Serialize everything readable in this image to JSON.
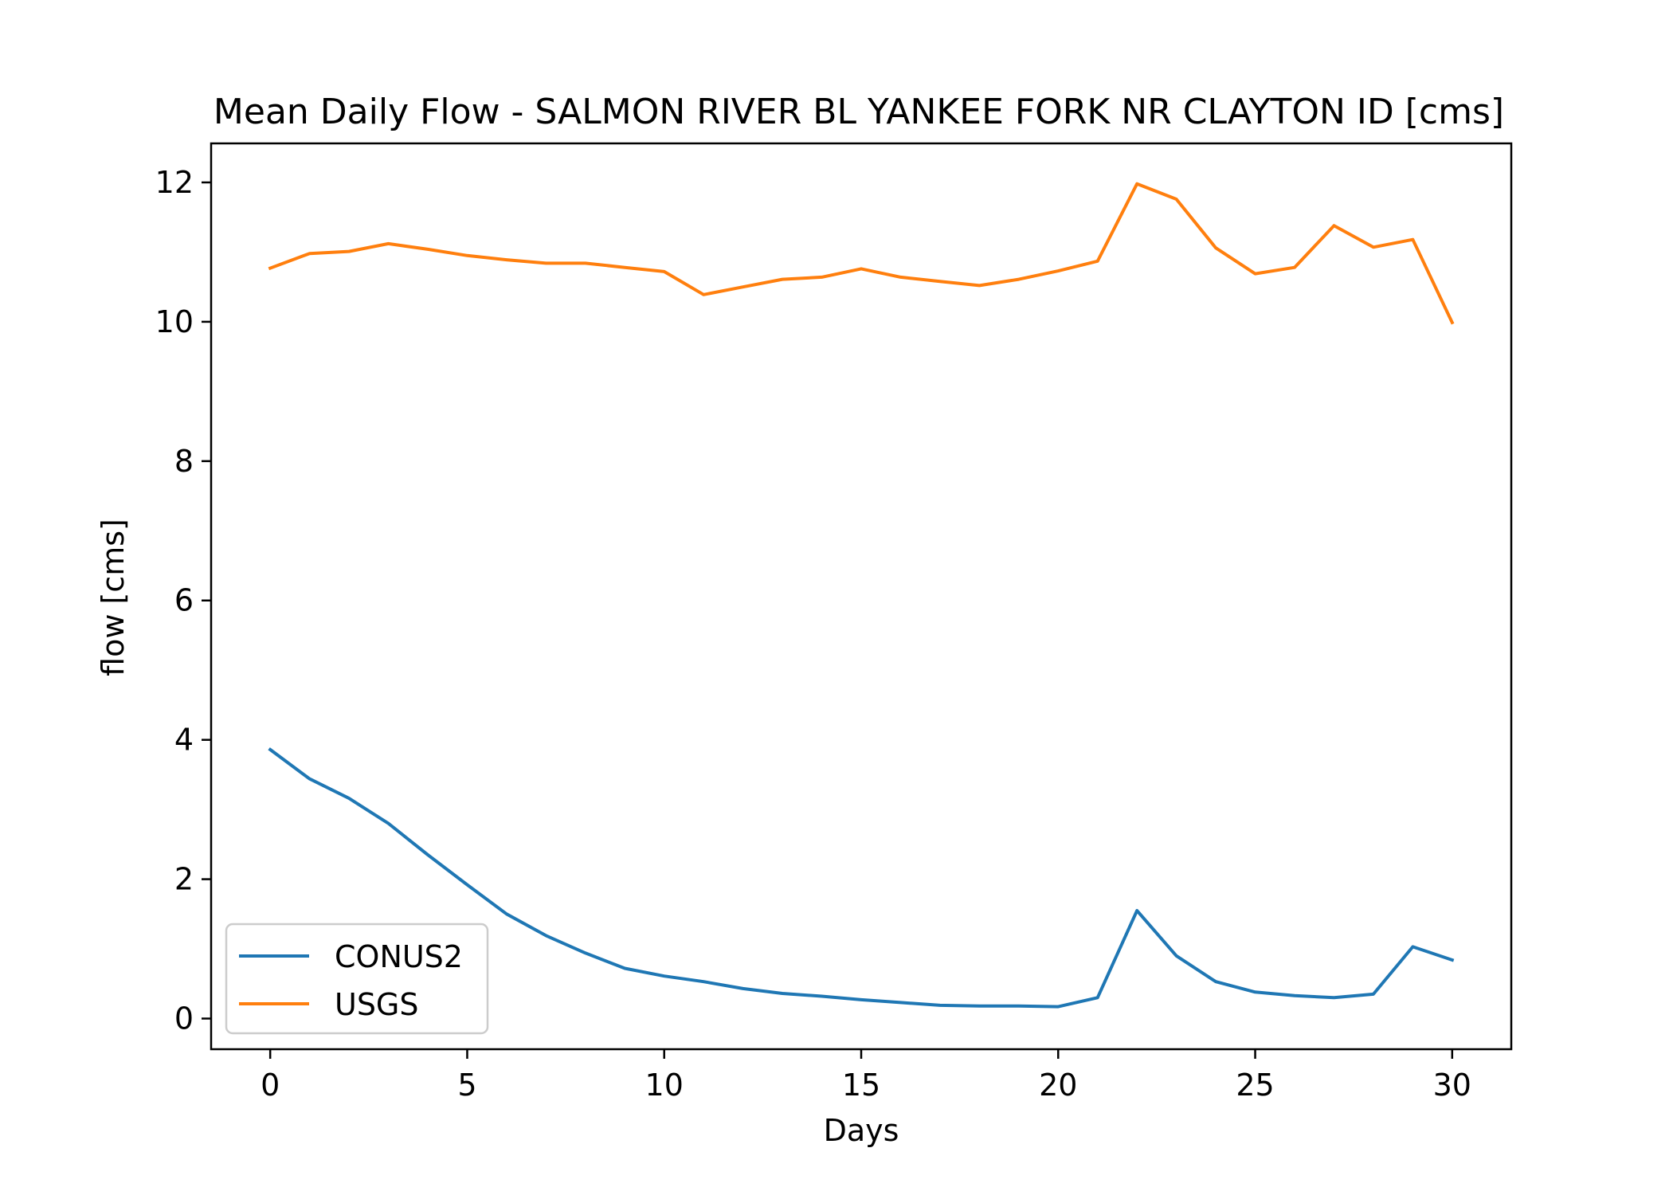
{
  "chart_data": {
    "type": "line",
    "title": "Mean Daily Flow - SALMON RIVER BL YANKEE FORK NR CLAYTON ID [cms]",
    "xlabel": "Days",
    "ylabel": "flow [cms]",
    "xlim": [
      -1.5,
      31.5
    ],
    "ylim": [
      -0.44,
      12.56
    ],
    "xticks": [
      0,
      5,
      10,
      15,
      20,
      25,
      30
    ],
    "yticks": [
      0,
      2,
      4,
      6,
      8,
      10,
      12
    ],
    "grid": false,
    "legend_position": "lower-left",
    "x": [
      0,
      1,
      2,
      3,
      4,
      5,
      6,
      7,
      8,
      9,
      10,
      11,
      12,
      13,
      14,
      15,
      16,
      17,
      18,
      19,
      20,
      21,
      22,
      23,
      24,
      25,
      26,
      27,
      28,
      29,
      30
    ],
    "series": [
      {
        "name": "CONUS2",
        "color": "#1f77b4",
        "values": [
          3.86,
          3.44,
          3.16,
          2.8,
          2.35,
          1.92,
          1.5,
          1.19,
          0.94,
          0.72,
          0.61,
          0.53,
          0.43,
          0.36,
          0.32,
          0.27,
          0.23,
          0.19,
          0.18,
          0.18,
          0.17,
          0.3,
          1.55,
          0.9,
          0.53,
          0.38,
          0.33,
          0.3,
          0.35,
          1.03,
          0.84
        ]
      },
      {
        "name": "USGS",
        "color": "#ff7f0e",
        "values": [
          10.77,
          10.98,
          11.01,
          11.12,
          11.04,
          10.95,
          10.89,
          10.84,
          10.84,
          10.78,
          10.72,
          10.39,
          10.5,
          10.61,
          10.64,
          10.76,
          10.64,
          10.58,
          10.52,
          10.61,
          10.73,
          10.87,
          11.98,
          11.76,
          11.06,
          10.69,
          10.78,
          11.38,
          11.07,
          11.18,
          9.99
        ]
      }
    ]
  }
}
